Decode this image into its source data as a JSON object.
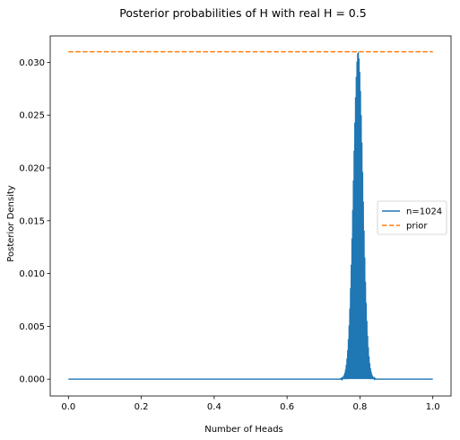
{
  "chart_data": {
    "type": "line",
    "title": "Posterior probabilities of H with real H = 0.5",
    "xlabel": "Number of Heads",
    "ylabel": "Posterior Density",
    "xlim": [
      -0.05,
      1.05
    ],
    "ylim": [
      -0.0016,
      0.0325
    ],
    "x_ticks": [
      0.0,
      0.2,
      0.4,
      0.6,
      0.8,
      1.0
    ],
    "x_tick_labels": [
      "0.0",
      "0.2",
      "0.4",
      "0.6",
      "0.8",
      "1.0"
    ],
    "y_ticks": [
      0.0,
      0.005,
      0.01,
      0.015,
      0.02,
      0.025,
      0.03
    ],
    "y_tick_labels": [
      "0.000",
      "0.005",
      "0.010",
      "0.015",
      "0.020",
      "0.025",
      "0.030"
    ],
    "grid": false,
    "legend": {
      "position": "center-right",
      "entries": [
        "n=1024",
        "prior"
      ]
    },
    "series": [
      {
        "name": "n=1024",
        "color": "#1f77b4",
        "style": "solid",
        "kind": "posterior",
        "n_points": 1024,
        "peak_x": 0.795,
        "peak_y": 0.031,
        "spread": 0.013
      },
      {
        "name": "prior",
        "color": "#ff7f0e",
        "style": "dashed",
        "x": [
          0.0,
          1.0
        ],
        "y": [
          0.031,
          0.031
        ]
      }
    ]
  }
}
